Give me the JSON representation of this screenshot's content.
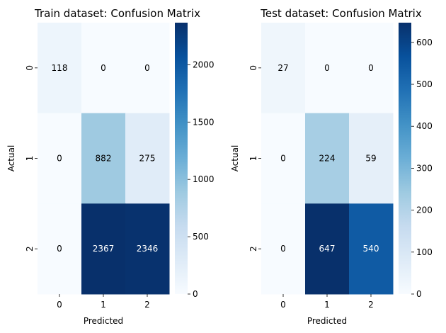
{
  "chart_data": [
    {
      "type": "heatmap",
      "title": "Train dataset: Confusion Matrix",
      "xlabel": "Predicted",
      "ylabel": "Actual",
      "x_categories": [
        "0",
        "1",
        "2"
      ],
      "y_categories": [
        "0",
        "1",
        "2"
      ],
      "values": [
        [
          118,
          0,
          0
        ],
        [
          0,
          882,
          275
        ],
        [
          0,
          2367,
          2346
        ]
      ],
      "colormap": "Blues",
      "vmin": 0,
      "vmax": 2367,
      "colorbar_ticks": [
        0,
        500,
        1000,
        1500,
        2000
      ]
    },
    {
      "type": "heatmap",
      "title": "Test dataset: Confusion Matrix",
      "xlabel": "Predicted",
      "ylabel": "Actual",
      "x_categories": [
        "0",
        "1",
        "2"
      ],
      "y_categories": [
        "0",
        "1",
        "2"
      ],
      "values": [
        [
          27,
          0,
          0
        ],
        [
          0,
          224,
          59
        ],
        [
          0,
          647,
          540
        ]
      ],
      "colormap": "Blues",
      "vmin": 0,
      "vmax": 647,
      "colorbar_ticks": [
        0,
        100,
        200,
        300,
        400,
        500,
        600
      ]
    }
  ]
}
